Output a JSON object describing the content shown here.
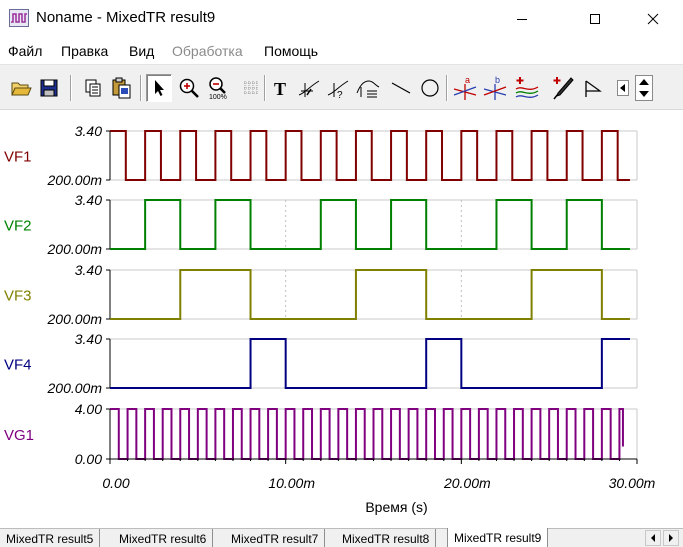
{
  "window": {
    "title": "Noname - MixedTR result9",
    "icons": {
      "app": "waveform-app-icon",
      "minimize": "minimize-icon",
      "maximize": "maximize-icon",
      "close": "close-icon"
    }
  },
  "menu": {
    "items": [
      {
        "label": "Файл",
        "enabled": true
      },
      {
        "label": "Правка",
        "enabled": true
      },
      {
        "label": "Вид",
        "enabled": true
      },
      {
        "label": "Обработка",
        "enabled": false
      },
      {
        "label": "Помощь",
        "enabled": true
      }
    ]
  },
  "toolbar": {
    "buttons": [
      {
        "name": "open-folder-icon"
      },
      {
        "name": "save-icon"
      },
      {
        "name": "copy-icon"
      },
      {
        "name": "paste-icon"
      },
      {
        "name": "pointer-icon",
        "pressed": true
      },
      {
        "name": "zoom-in-icon"
      },
      {
        "name": "zoom-100-icon",
        "label": "100%"
      },
      {
        "name": "grid-icon"
      },
      {
        "name": "text-icon",
        "label": "T"
      },
      {
        "name": "measure-slope-icon"
      },
      {
        "name": "measure-slope-query-icon"
      },
      {
        "name": "measure-level-icon"
      },
      {
        "name": "line-icon"
      },
      {
        "name": "ellipse-icon"
      },
      {
        "name": "cursor-a-icon",
        "label": "a"
      },
      {
        "name": "cursor-b-icon",
        "label": "b"
      },
      {
        "name": "add-curves-icon"
      },
      {
        "name": "pick-color-icon"
      },
      {
        "name": "flag-icon"
      },
      {
        "name": "scroll-left-icon"
      },
      {
        "name": "scroll-updown-icon"
      }
    ]
  },
  "chart_data": {
    "type": "line",
    "xlabel": "Время (s)",
    "xlim": [
      0,
      30
    ],
    "x_unit": "ms",
    "x_ticks": [
      {
        "value": 0,
        "label": "0.00"
      },
      {
        "value": 10,
        "label": "10.00m"
      },
      {
        "value": 20,
        "label": "20.00m"
      },
      {
        "value": 30,
        "label": "30.00m"
      }
    ],
    "grid": "dashed vertical at 10 ms and 20 ms",
    "traces": [
      {
        "name": "VF1",
        "color": "#800000",
        "ymin_label": "200.00m",
        "ymax_label": "3.40",
        "ymin": 0.2,
        "ymax": 3.4,
        "start_level": "high",
        "transitions": [
          0.9,
          2.0,
          2.9,
          4.0,
          4.9,
          6.0,
          6.9,
          8.0,
          8.9,
          10.0,
          10.9,
          12.0,
          12.9,
          14.0,
          14.9,
          16.0,
          16.9,
          18.0,
          18.9,
          20.0,
          20.9,
          22.0,
          22.9,
          24.0,
          24.9,
          26.0,
          26.9,
          28.0,
          28.9
        ]
      },
      {
        "name": "VF2",
        "color": "#008000",
        "ymin_label": "200.00m",
        "ymax_label": "3.40",
        "ymin": 0.2,
        "ymax": 3.4,
        "start_level": "low",
        "transitions": [
          2.0,
          4.0,
          6.0,
          8.0,
          12.0,
          14.0,
          16.0,
          18.0,
          22.0,
          24.0,
          26.0,
          28.0
        ]
      },
      {
        "name": "VF3",
        "color": "#808000",
        "ymin_label": "200.00m",
        "ymax_label": "3.40",
        "ymin": 0.2,
        "ymax": 3.4,
        "start_level": "low",
        "transitions": [
          4.0,
          8.0,
          14.0,
          18.0,
          24.0,
          28.0
        ]
      },
      {
        "name": "VF4",
        "color": "#000080",
        "ymin_label": "200.00m",
        "ymax_label": "3.40",
        "ymin": 0.2,
        "ymax": 3.4,
        "start_level": "low",
        "transitions": [
          8.0,
          10.0,
          18.0,
          20.0,
          28.0
        ]
      },
      {
        "name": "VG1",
        "color": "#800080",
        "ymin_label": "0.00",
        "ymax_label": "4.00",
        "ymin": 0,
        "ymax": 4,
        "start_level": "high",
        "clock_period": 1.0,
        "clock_end": 29.2,
        "end_level": 1.0
      }
    ]
  },
  "tabs": {
    "items": [
      {
        "label": "MixedTR result5",
        "active": false
      },
      {
        "label": "MixedTR result6",
        "active": false
      },
      {
        "label": "MixedTR result7",
        "active": false
      },
      {
        "label": "MixedTR result8",
        "active": false
      },
      {
        "label": "MixedTR result9",
        "active": true
      }
    ],
    "icons": {
      "prev": "tab-scroll-left-icon",
      "next": "tab-scroll-right-icon"
    }
  }
}
